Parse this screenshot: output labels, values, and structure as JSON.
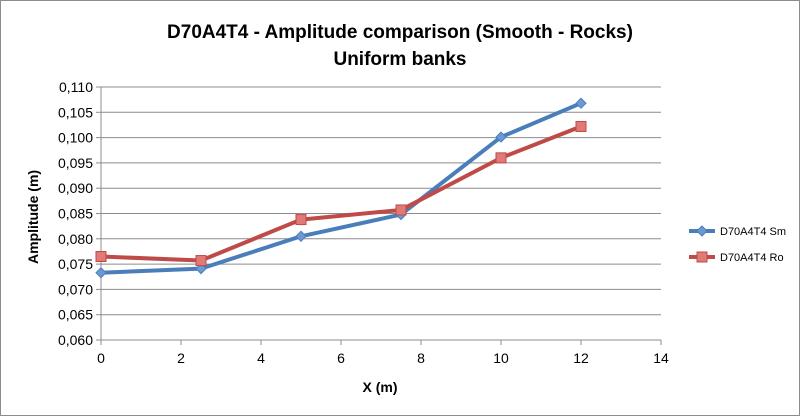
{
  "chart_data": {
    "type": "line",
    "title": "D70A4T4 - Amplitude comparison (Smooth - Rocks)",
    "subtitle": "Uniform banks",
    "xlabel": "X (m)",
    "ylabel": "Amplitude (m)",
    "xlim": [
      0,
      14
    ],
    "ylim": [
      0.06,
      0.11
    ],
    "x_ticks": [
      0,
      2,
      4,
      6,
      8,
      10,
      12,
      14
    ],
    "y_ticks": [
      "0,060",
      "0,065",
      "0,070",
      "0,075",
      "0,080",
      "0,085",
      "0,090",
      "0,095",
      "0,100",
      "0,105",
      "0,110"
    ],
    "grid": "horizontal",
    "legend_position": "right",
    "series": [
      {
        "name": "D70A4T4 Sm",
        "color": "#4a7ebb",
        "marker": "diamond",
        "x": [
          0,
          2.5,
          5,
          7.5,
          10,
          12
        ],
        "y": [
          0.0733,
          0.0741,
          0.0805,
          0.0848,
          0.1001,
          0.1068
        ]
      },
      {
        "name": "D70A4T4 Ro",
        "color": "#be4b48",
        "marker": "square",
        "x": [
          0,
          2.5,
          5,
          7.5,
          10,
          12
        ],
        "y": [
          0.0765,
          0.0757,
          0.0838,
          0.0857,
          0.096,
          0.1022
        ]
      }
    ]
  }
}
